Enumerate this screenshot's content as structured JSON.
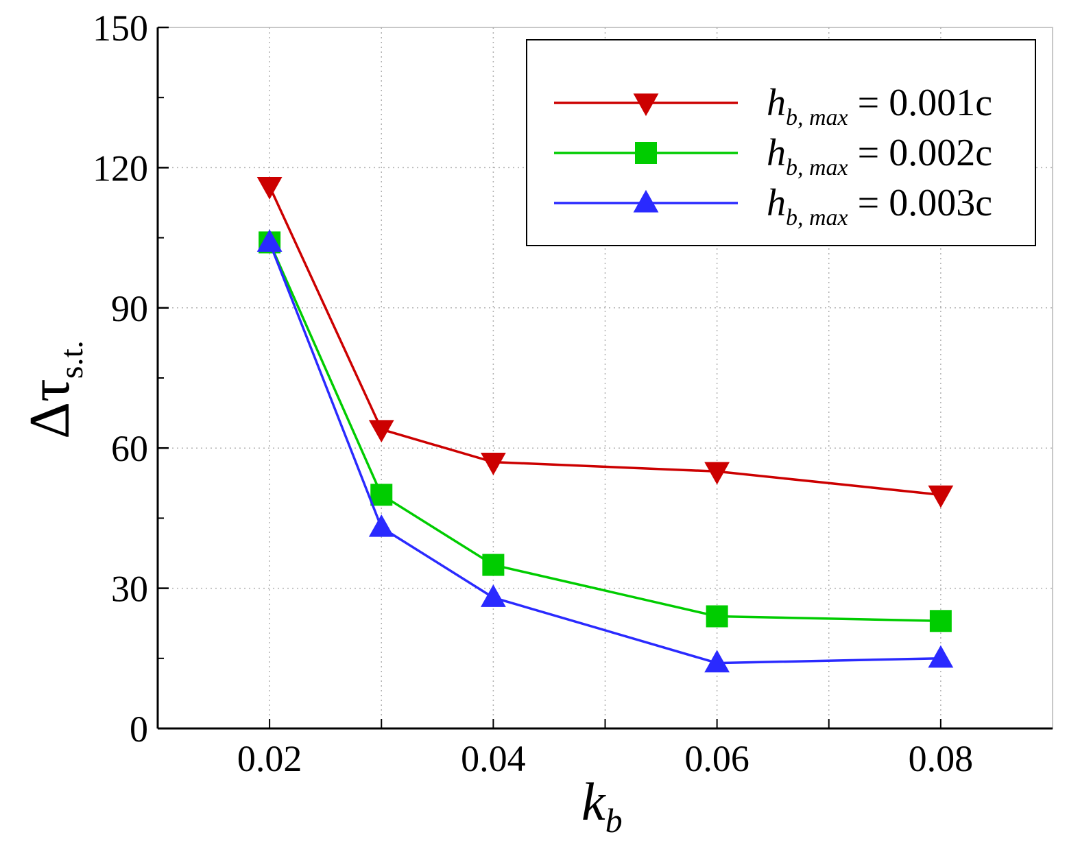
{
  "chart_data": {
    "type": "line",
    "title": "",
    "xlabel": {
      "main": "k",
      "sub": "b"
    },
    "ylabel": {
      "main": "Δτ",
      "sub": "s.t."
    },
    "xlim": [
      0.01,
      0.09
    ],
    "ylim": [
      0,
      150
    ],
    "x_ticks": [
      0.02,
      0.04,
      0.06,
      0.08
    ],
    "x_tick_labels": [
      "0.02",
      "0.04",
      "0.06",
      "0.08"
    ],
    "y_ticks": [
      0,
      30,
      60,
      90,
      120,
      150
    ],
    "y_tick_labels": [
      "0",
      "30",
      "60",
      "90",
      "120",
      "150"
    ],
    "grid": true,
    "legend_position": "top-right",
    "x": [
      0.02,
      0.03,
      0.04,
      0.06,
      0.08
    ],
    "series": [
      {
        "name": "h_b,max = 0.001c",
        "label_main": "h",
        "label_sub": "b, max",
        "label_rest": " = 0.001c",
        "color": "#cc0000",
        "marker": "triangle-down",
        "values": [
          116,
          64,
          57,
          55,
          50
        ]
      },
      {
        "name": "h_b,max = 0.002c",
        "label_main": "h",
        "label_sub": "b, max",
        "label_rest": " = 0.002c",
        "color": "#00cc00",
        "marker": "square",
        "values": [
          104,
          50,
          35,
          24,
          23
        ]
      },
      {
        "name": "h_b,max = 0.003c",
        "label_main": "h",
        "label_sub": "b, max",
        "label_rest": " = 0.003c",
        "color": "#2a2aff",
        "marker": "triangle-up",
        "values": [
          104,
          43,
          28,
          14,
          15
        ]
      }
    ]
  }
}
